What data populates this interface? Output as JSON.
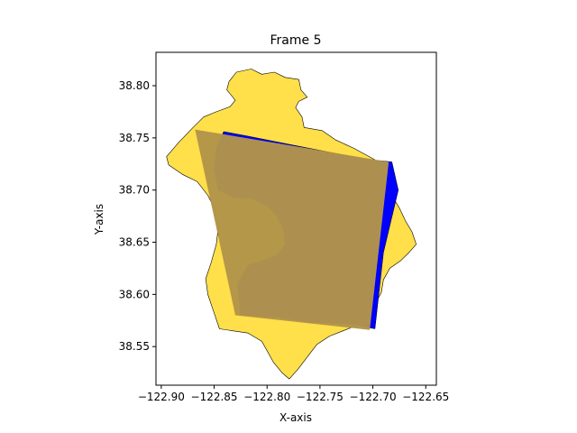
{
  "chart_data": {
    "type": "map",
    "title": "Frame 5",
    "xlabel": "X-axis",
    "ylabel": "Y-axis",
    "xlim": [
      -122.905,
      -122.64
    ],
    "ylim": [
      38.513,
      38.832
    ],
    "xticks": [
      -122.9,
      -122.85,
      -122.8,
      -122.75,
      -122.7,
      -122.65
    ],
    "xtick_labels": [
      "−122.90",
      "−122.85",
      "−122.80",
      "−122.75",
      "−122.70",
      "−122.65"
    ],
    "yticks": [
      38.55,
      38.6,
      38.65,
      38.7,
      38.75,
      38.8
    ],
    "ytick_labels": [
      "38.55",
      "38.60",
      "38.65",
      "38.70",
      "38.75",
      "38.80"
    ],
    "grid": false,
    "colors": {
      "region": "#ffdf4a",
      "blue_region": "#0000ff",
      "overlay": "#b39549",
      "outline": "#000000"
    },
    "region_polygon": [
      [
        -122.829,
        38.813
      ],
      [
        -122.815,
        38.816
      ],
      [
        -122.805,
        38.811
      ],
      [
        -122.793,
        38.813
      ],
      [
        -122.783,
        38.808
      ],
      [
        -122.77,
        38.806
      ],
      [
        -122.768,
        38.796
      ],
      [
        -122.762,
        38.789
      ],
      [
        -122.77,
        38.785
      ],
      [
        -122.773,
        38.779
      ],
      [
        -122.767,
        38.77
      ],
      [
        -122.765,
        38.76
      ],
      [
        -122.748,
        38.757
      ],
      [
        -122.735,
        38.748
      ],
      [
        -122.718,
        38.74
      ],
      [
        -122.698,
        38.729
      ],
      [
        -122.69,
        38.718
      ],
      [
        -122.694,
        38.708
      ],
      [
        -122.688,
        38.703
      ],
      [
        -122.681,
        38.693
      ],
      [
        -122.675,
        38.683
      ],
      [
        -122.669,
        38.67
      ],
      [
        -122.663,
        38.66
      ],
      [
        -122.659,
        38.648
      ],
      [
        -122.666,
        38.64
      ],
      [
        -122.674,
        38.632
      ],
      [
        -122.684,
        38.625
      ],
      [
        -122.69,
        38.614
      ],
      [
        -122.692,
        38.602
      ],
      [
        -122.698,
        38.59
      ],
      [
        -122.703,
        38.58
      ],
      [
        -122.713,
        38.571
      ],
      [
        -122.726,
        38.566
      ],
      [
        -122.741,
        38.56
      ],
      [
        -122.753,
        38.552
      ],
      [
        -122.762,
        38.54
      ],
      [
        -122.771,
        38.528
      ],
      [
        -122.779,
        38.519
      ],
      [
        -122.786,
        38.525
      ],
      [
        -122.794,
        38.535
      ],
      [
        -122.805,
        38.555
      ],
      [
        -122.818,
        38.563
      ],
      [
        -122.832,
        38.565
      ],
      [
        -122.845,
        38.567
      ],
      [
        -122.851,
        38.585
      ],
      [
        -122.856,
        38.6
      ],
      [
        -122.858,
        38.615
      ],
      [
        -122.853,
        38.63
      ],
      [
        -122.848,
        38.648
      ],
      [
        -122.846,
        38.665
      ],
      [
        -122.85,
        38.683
      ],
      [
        -122.856,
        38.695
      ],
      [
        -122.866,
        38.708
      ],
      [
        -122.88,
        38.715
      ],
      [
        -122.893,
        38.724
      ],
      [
        -122.895,
        38.732
      ],
      [
        -122.884,
        38.745
      ],
      [
        -122.87,
        38.76
      ],
      [
        -122.86,
        38.77
      ],
      [
        -122.848,
        38.775
      ],
      [
        -122.835,
        38.78
      ],
      [
        -122.83,
        38.786
      ],
      [
        -122.838,
        38.796
      ],
      [
        -122.836,
        38.804
      ]
    ],
    "blue_polygon": [
      [
        -122.841,
        38.756
      ],
      [
        -122.82,
        38.752
      ],
      [
        -122.78,
        38.744
      ],
      [
        -122.74,
        38.736
      ],
      [
        -122.71,
        38.73
      ],
      [
        -122.682,
        38.727
      ],
      [
        -122.676,
        38.7
      ],
      [
        -122.69,
        38.64
      ],
      [
        -122.698,
        38.567
      ],
      [
        -122.723,
        38.572
      ],
      [
        -122.76,
        38.573
      ],
      [
        -122.789,
        38.578
      ],
      [
        -122.825,
        38.58
      ],
      [
        -122.828,
        38.61
      ],
      [
        -122.818,
        38.628
      ],
      [
        -122.802,
        38.633
      ],
      [
        -122.79,
        38.638
      ],
      [
        -122.783,
        38.648
      ],
      [
        -122.784,
        38.66
      ],
      [
        -122.79,
        38.674
      ],
      [
        -122.8,
        38.685
      ],
      [
        -122.815,
        38.692
      ],
      [
        -122.832,
        38.693
      ],
      [
        -122.846,
        38.7
      ],
      [
        -122.85,
        38.72
      ],
      [
        -122.848,
        38.74
      ]
    ],
    "overlay_quad": [
      [
        -122.868,
        38.758
      ],
      [
        -122.685,
        38.727
      ],
      [
        -122.703,
        38.566
      ],
      [
        -122.83,
        38.58
      ]
    ]
  }
}
